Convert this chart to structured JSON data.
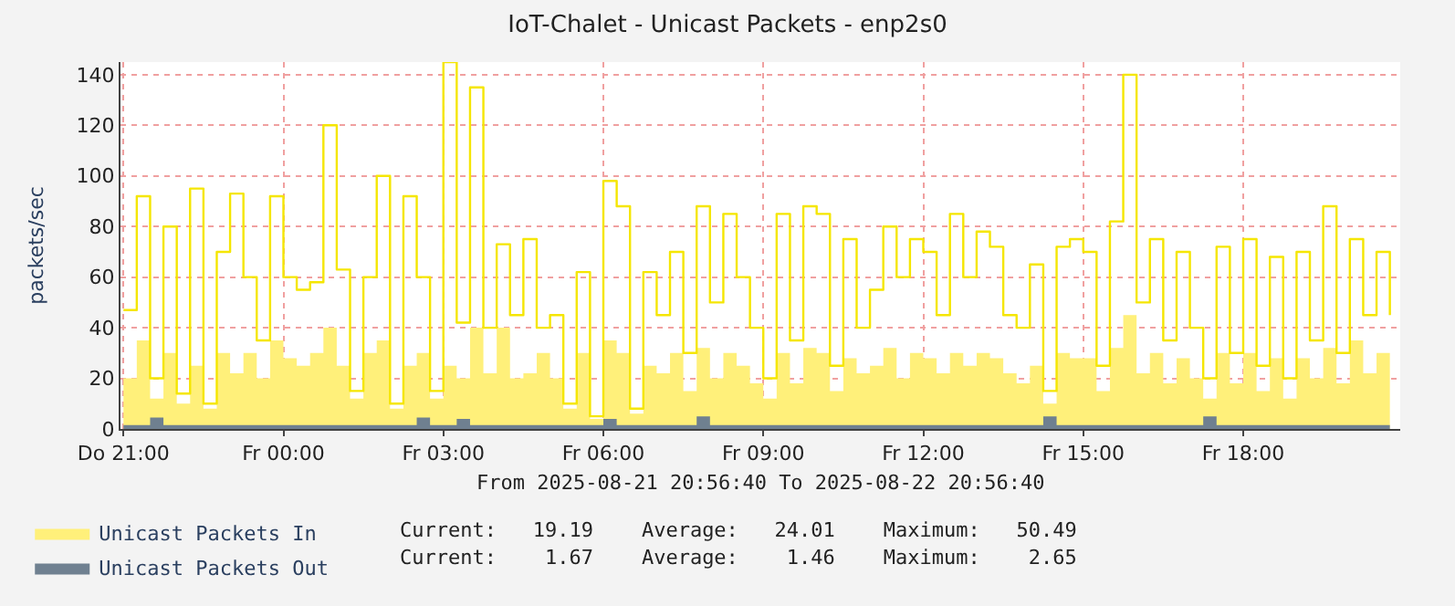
{
  "chart_data": {
    "type": "area",
    "title": "IoT-Chalet - Unicast Packets - enp2s0",
    "subtitle": "From 2025-08-21 20:56:40 To 2025-08-22 20:56:40",
    "ylabel": "packets/sec",
    "x": [
      "2025-08-21T21:00",
      "2025-08-21T21:15",
      "2025-08-21T21:30",
      "2025-08-21T21:45",
      "2025-08-21T22:00",
      "2025-08-21T22:15",
      "2025-08-21T22:30",
      "2025-08-21T22:45",
      "2025-08-21T23:00",
      "2025-08-21T23:15",
      "2025-08-21T23:30",
      "2025-08-21T23:45",
      "2025-08-22T00:00",
      "2025-08-22T00:15",
      "2025-08-22T00:30",
      "2025-08-22T00:45",
      "2025-08-22T01:00",
      "2025-08-22T01:15",
      "2025-08-22T01:30",
      "2025-08-22T01:45",
      "2025-08-22T02:00",
      "2025-08-22T02:15",
      "2025-08-22T02:30",
      "2025-08-22T02:45",
      "2025-08-22T03:00",
      "2025-08-22T03:15",
      "2025-08-22T03:30",
      "2025-08-22T03:45",
      "2025-08-22T04:00",
      "2025-08-22T04:15",
      "2025-08-22T04:30",
      "2025-08-22T04:45",
      "2025-08-22T05:00",
      "2025-08-22T05:15",
      "2025-08-22T05:30",
      "2025-08-22T05:45",
      "2025-08-22T06:00",
      "2025-08-22T06:15",
      "2025-08-22T06:30",
      "2025-08-22T06:45",
      "2025-08-22T07:00",
      "2025-08-22T07:15",
      "2025-08-22T07:30",
      "2025-08-22T07:45",
      "2025-08-22T08:00",
      "2025-08-22T08:15",
      "2025-08-22T08:30",
      "2025-08-22T08:45",
      "2025-08-22T09:00",
      "2025-08-22T09:15",
      "2025-08-22T09:30",
      "2025-08-22T09:45",
      "2025-08-22T10:00",
      "2025-08-22T10:15",
      "2025-08-22T10:30",
      "2025-08-22T10:45",
      "2025-08-22T11:00",
      "2025-08-22T11:15",
      "2025-08-22T11:30",
      "2025-08-22T11:45",
      "2025-08-22T12:00",
      "2025-08-22T12:15",
      "2025-08-22T12:30",
      "2025-08-22T12:45",
      "2025-08-22T13:00",
      "2025-08-22T13:15",
      "2025-08-22T13:30",
      "2025-08-22T13:45",
      "2025-08-22T14:00",
      "2025-08-22T14:15",
      "2025-08-22T14:30",
      "2025-08-22T14:45",
      "2025-08-22T15:00",
      "2025-08-22T15:15",
      "2025-08-22T15:30",
      "2025-08-22T15:45",
      "2025-08-22T16:00",
      "2025-08-22T16:15",
      "2025-08-22T16:30",
      "2025-08-22T16:45",
      "2025-08-22T17:00",
      "2025-08-22T17:15",
      "2025-08-22T17:30",
      "2025-08-22T17:45",
      "2025-08-22T18:00",
      "2025-08-22T18:15",
      "2025-08-22T18:30",
      "2025-08-22T18:45",
      "2025-08-22T19:00",
      "2025-08-22T19:15",
      "2025-08-22T19:30",
      "2025-08-22T19:45",
      "2025-08-22T20:00",
      "2025-08-22T20:15",
      "2025-08-22T20:30",
      "2025-08-22T20:45"
    ],
    "series": [
      {
        "name": "Unicast Packets In",
        "color": "#fff07a",
        "values": [
          20,
          35,
          12,
          30,
          10,
          25,
          8,
          30,
          22,
          30,
          20,
          35,
          28,
          25,
          30,
          40,
          25,
          12,
          30,
          35,
          8,
          25,
          30,
          12,
          25,
          20,
          40,
          22,
          40,
          20,
          22,
          30,
          20,
          8,
          30,
          4,
          35,
          30,
          6,
          25,
          22,
          30,
          15,
          32,
          20,
          30,
          25,
          18,
          12,
          30,
          18,
          32,
          30,
          15,
          28,
          22,
          25,
          32,
          20,
          30,
          28,
          22,
          30,
          25,
          30,
          28,
          22,
          18,
          25,
          10,
          30,
          28,
          28,
          15,
          32,
          45,
          22,
          30,
          18,
          28,
          20,
          12,
          30,
          18,
          30,
          15,
          28,
          12,
          28,
          20,
          32,
          18,
          35,
          22,
          30,
          20
        ]
      },
      {
        "type": "step",
        "color": "#f5e600",
        "values": [
          47,
          92,
          20,
          80,
          14,
          95,
          10,
          70,
          93,
          60,
          35,
          92,
          60,
          55,
          58,
          120,
          63,
          15,
          60,
          100,
          10,
          92,
          60,
          15,
          145,
          42,
          135,
          40,
          73,
          45,
          75,
          40,
          45,
          10,
          62,
          5,
          98,
          88,
          8,
          62,
          45,
          70,
          30,
          88,
          50,
          85,
          60,
          40,
          20,
          85,
          35,
          88,
          85,
          25,
          75,
          40,
          55,
          80,
          60,
          75,
          70,
          45,
          85,
          60,
          78,
          72,
          45,
          40,
          65,
          15,
          72,
          75,
          70,
          25,
          82,
          140,
          50,
          75,
          35,
          70,
          40,
          20,
          72,
          30,
          75,
          25,
          68,
          20,
          70,
          35,
          88,
          30,
          75,
          45,
          70,
          45
        ]
      },
      {
        "name": "Unicast Packets Out",
        "color": "#6f8090",
        "values": [
          1.5,
          1.5,
          4.5,
          1.5,
          1.5,
          1.5,
          1.5,
          1.5,
          1.5,
          1.5,
          1.5,
          1.5,
          1.5,
          1.5,
          1.5,
          1.5,
          1.5,
          1.5,
          1.5,
          1.5,
          1.5,
          1.5,
          4.5,
          1.5,
          1.5,
          4,
          1.5,
          1.5,
          1.5,
          1.5,
          1.5,
          1.5,
          1.5,
          1.5,
          1.5,
          1.5,
          4,
          1.5,
          1.5,
          1.5,
          1.5,
          1.5,
          1.5,
          5,
          1.5,
          1.5,
          1.5,
          1.5,
          1.5,
          1.5,
          1.5,
          1.5,
          1.5,
          1.5,
          1.5,
          1.5,
          1.5,
          1.5,
          1.5,
          1.5,
          1.5,
          1.5,
          1.5,
          1.5,
          1.5,
          1.5,
          1.5,
          1.5,
          1.5,
          5,
          1.5,
          1.5,
          1.5,
          1.5,
          1.5,
          1.5,
          1.5,
          1.5,
          1.5,
          1.5,
          1.5,
          5,
          1.5,
          1.5,
          1.5,
          1.5,
          1.5,
          1.5,
          1.5,
          1.5,
          1.5,
          1.5,
          1.5,
          1.5,
          1.5,
          1.5
        ]
      }
    ],
    "xlim": [
      "2025-08-21T20:56:40",
      "2025-08-22T20:56:40"
    ],
    "xticks": [
      {
        "value": "2025-08-21T21:00",
        "label": "Do 21:00"
      },
      {
        "value": "2025-08-22T00:00",
        "label": "Fr 00:00"
      },
      {
        "value": "2025-08-22T03:00",
        "label": "Fr 03:00"
      },
      {
        "value": "2025-08-22T06:00",
        "label": "Fr 06:00"
      },
      {
        "value": "2025-08-22T09:00",
        "label": "Fr 09:00"
      },
      {
        "value": "2025-08-22T12:00",
        "label": "Fr 12:00"
      },
      {
        "value": "2025-08-22T15:00",
        "label": "Fr 15:00"
      },
      {
        "value": "2025-08-22T18:00",
        "label": "Fr 18:00"
      }
    ],
    "ylim": [
      0,
      145
    ],
    "yticks": [
      0,
      20,
      40,
      60,
      80,
      100,
      120,
      140
    ],
    "grid": true,
    "legend": "bottom left",
    "annotations": [
      "Current:   19.19    Average:   24.01    Maximum:   50.49",
      "Current:    1.67    Average:    1.46    Maximum:    2.65"
    ]
  }
}
